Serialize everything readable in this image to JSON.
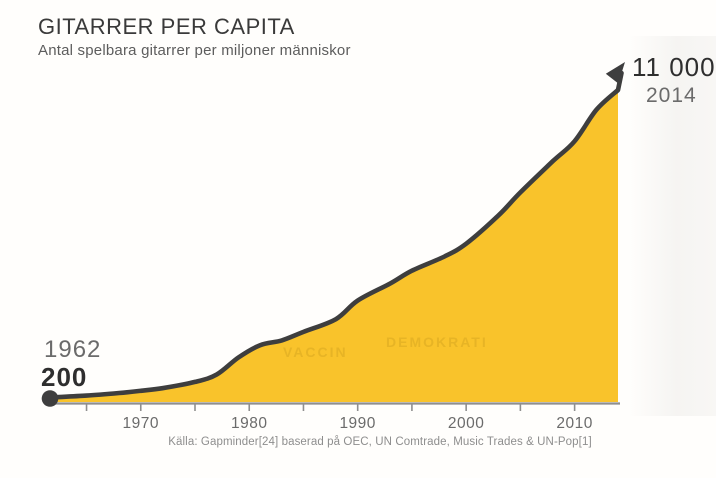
{
  "header": {
    "title": "GITARRER PER CAPITA",
    "subtitle": "Antal spelbara gitarrer per miljoner människor"
  },
  "annotations": {
    "start_year": "1962",
    "start_value": "200",
    "end_value": "11 000",
    "end_year": "2014"
  },
  "source": "Källa: Gapminder[24] baserad på OEC, UN Comtrade, Music Trades & UN-Pop[1]",
  "colors": {
    "area": "#F9C32B",
    "line": "#3E3E3E",
    "axis": "#8F8F8F",
    "tick_label": "#6b6b6b",
    "text_dark": "#2e2e2e",
    "text_gray": "#6b6b6b",
    "source_gray": "#8e8e8e",
    "ghost": "rgba(125,92,8,0.14)"
  },
  "ghost_text": [
    "VACCIN",
    "DEMOKRATI"
  ],
  "chart_data": {
    "type": "area",
    "title": "GITARRER PER CAPITA",
    "subtitle": "Antal spelbara gitarrer per miljoner människor",
    "xlabel": "",
    "ylabel": "Antal spelbara gitarrer per miljoner människor",
    "x_range": [
      1962,
      2014
    ],
    "y_range": [
      0,
      11000
    ],
    "grid": false,
    "legend": false,
    "x_ticks_labeled": [
      1970,
      1980,
      1990,
      2000,
      2010
    ],
    "x_ticks_minor": [
      1965,
      1975,
      1985,
      1995,
      2005
    ],
    "start_point": {
      "year": 1962,
      "value": 200
    },
    "end_point": {
      "year": 2014,
      "value": 11000
    },
    "points": [
      [
        1962,
        200
      ],
      [
        1965,
        260
      ],
      [
        1968,
        350
      ],
      [
        1970,
        430
      ],
      [
        1972,
        520
      ],
      [
        1975,
        740
      ],
      [
        1977,
        1000
      ],
      [
        1979,
        1600
      ],
      [
        1981,
        2030
      ],
      [
        1983,
        2200
      ],
      [
        1985,
        2500
      ],
      [
        1988,
        2950
      ],
      [
        1990,
        3600
      ],
      [
        1993,
        4200
      ],
      [
        1995,
        4650
      ],
      [
        1998,
        5150
      ],
      [
        2000,
        5600
      ],
      [
        2003,
        6600
      ],
      [
        2005,
        7400
      ],
      [
        2008,
        8500
      ],
      [
        2010,
        9200
      ],
      [
        2012,
        10300
      ],
      [
        2014,
        11000
      ]
    ],
    "source": "Källa: Gapminder[24] baserad på OEC, UN Comtrade, Music Trades & UN-Pop[1]"
  }
}
